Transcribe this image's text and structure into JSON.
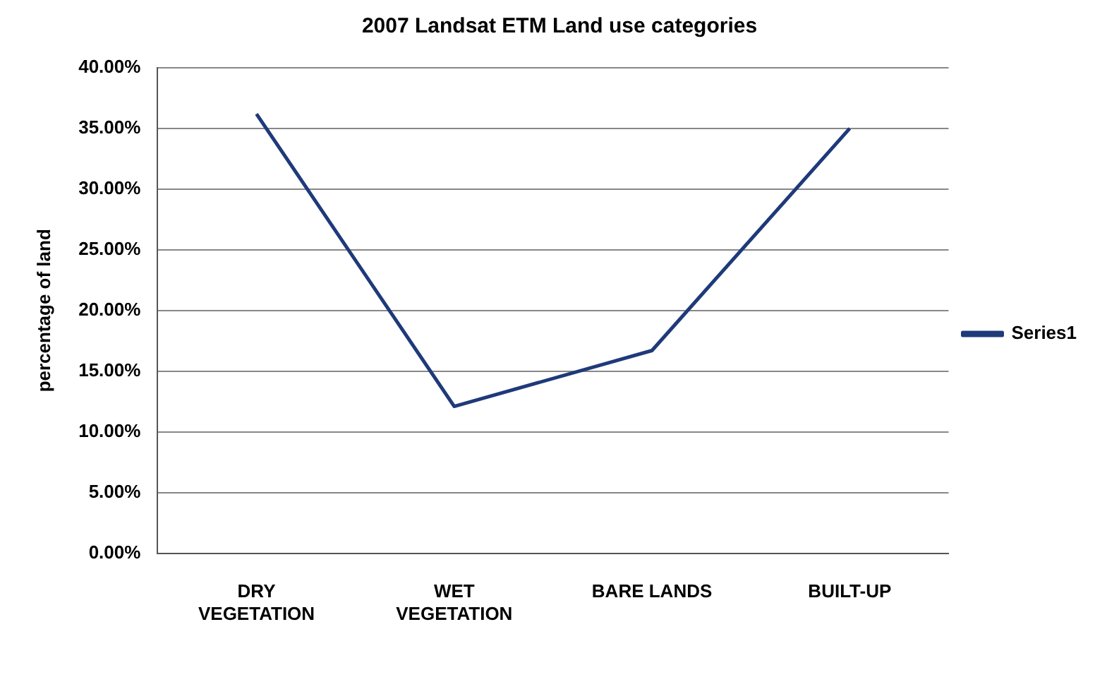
{
  "chart_data": {
    "type": "line",
    "title": "2007 Landsat ETM Land use categories",
    "ylabel": "percentage of land",
    "categories": [
      "DRY VEGETATION",
      "WET VEGETATION",
      "BARE LANDS",
      "BUILT-UP"
    ],
    "series": [
      {
        "name": "Series1",
        "color": "#1f3a7a",
        "values": [
          36.2,
          12.1,
          16.7,
          35.0
        ]
      }
    ],
    "ylim": [
      0,
      40
    ],
    "yticks": [
      {
        "value": 0,
        "label": "0.00%"
      },
      {
        "value": 5,
        "label": "5.00%"
      },
      {
        "value": 10,
        "label": "10.00%"
      },
      {
        "value": 15,
        "label": "15.00%"
      },
      {
        "value": 20,
        "label": "20.00%"
      },
      {
        "value": 25,
        "label": "25.00%"
      },
      {
        "value": 30,
        "label": "30.00%"
      },
      {
        "value": 35,
        "label": "35.00%"
      },
      {
        "value": 40,
        "label": "40.00%"
      }
    ],
    "grid": "y",
    "legend": "right",
    "marker": "none",
    "line_style": "solid"
  }
}
